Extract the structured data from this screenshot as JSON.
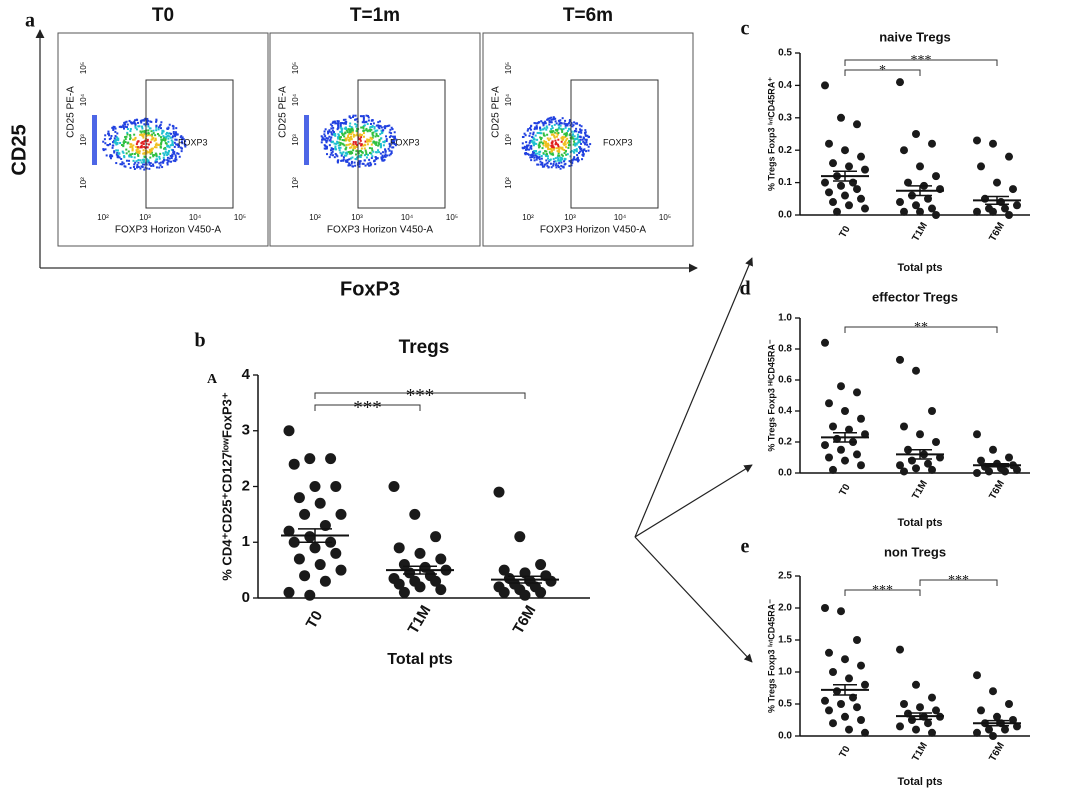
{
  "panel_labels": [
    "a",
    "b",
    "c",
    "d",
    "e"
  ],
  "panel_b_sublabel": "A",
  "flow_panels": {
    "titles": [
      "T0",
      "T=1m",
      "T=6m"
    ],
    "x_axis_label": "FOXP3 Horizon V450-A",
    "y_axis_label": "CD25 PE-A",
    "gate_label": "FOXP3",
    "ticks": [
      "10²",
      "10³",
      "10⁴",
      "10⁵"
    ],
    "big_y_label": "CD25",
    "big_x_label": "FoxP3"
  },
  "chart_data": [
    {
      "type": "dot",
      "title": "Tregs",
      "xlabel": "Total pts",
      "ylabel": "% CD4⁺CD25⁺CD127ˡᵒʷFoxP3⁺",
      "categories": [
        "T0",
        "T1M",
        "T6M"
      ],
      "points": [
        [
          3.0,
          2.5,
          2.5,
          2.4,
          2.0,
          2.0,
          1.8,
          1.7,
          1.5,
          1.5,
          1.3,
          1.2,
          1.1,
          1.0,
          1.0,
          0.9,
          0.8,
          0.7,
          0.6,
          0.5,
          0.4,
          0.3,
          0.1,
          0.05
        ],
        [
          2.0,
          1.5,
          1.1,
          0.9,
          0.8,
          0.7,
          0.6,
          0.55,
          0.5,
          0.45,
          0.4,
          0.35,
          0.3,
          0.3,
          0.25,
          0.2,
          0.15,
          0.1
        ],
        [
          1.9,
          1.1,
          0.6,
          0.5,
          0.45,
          0.4,
          0.35,
          0.3,
          0.3,
          0.25,
          0.2,
          0.2,
          0.15,
          0.1,
          0.1,
          0.05
        ]
      ],
      "means": [
        1.12,
        0.5,
        0.33
      ],
      "sem": [
        0.12,
        0.07,
        0.06
      ],
      "ylim": [
        0,
        4
      ],
      "yticks": [
        0,
        1,
        2,
        3,
        4
      ],
      "brackets": [
        {
          "groups": [
            "T0",
            "T1M"
          ],
          "label": "***"
        },
        {
          "groups": [
            "T0",
            "T6M"
          ],
          "label": "***"
        }
      ]
    },
    {
      "type": "dot",
      "title": "naive Tregs",
      "xlabel": "Total pts",
      "ylabel": "% Tregs Foxp3 ⁱⁿᵗCD45RA⁺",
      "categories": [
        "T0",
        "T1M",
        "T6M"
      ],
      "points": [
        [
          0.4,
          0.3,
          0.28,
          0.22,
          0.2,
          0.18,
          0.16,
          0.15,
          0.14,
          0.12,
          0.1,
          0.1,
          0.09,
          0.08,
          0.07,
          0.06,
          0.05,
          0.04,
          0.03,
          0.02,
          0.01
        ],
        [
          0.41,
          0.25,
          0.22,
          0.2,
          0.15,
          0.12,
          0.1,
          0.09,
          0.08,
          0.06,
          0.05,
          0.04,
          0.03,
          0.02,
          0.01,
          0.01,
          0
        ],
        [
          0.23,
          0.22,
          0.18,
          0.15,
          0.1,
          0.08,
          0.05,
          0.04,
          0.03,
          0.02,
          0.02,
          0.01,
          0.01,
          0
        ]
      ],
      "means": [
        0.12,
        0.075,
        0.045
      ],
      "sem": [
        0.015,
        0.015,
        0.012
      ],
      "ylim": [
        0,
        0.5
      ],
      "yticks": [
        {
          "value": 0,
          "label": "0.0"
        },
        0.1,
        0.2,
        0.3,
        0.4,
        0.5
      ],
      "brackets": [
        {
          "groups": [
            "T0",
            "T1M"
          ],
          "label": "*"
        },
        {
          "groups": [
            "T0",
            "T6M"
          ],
          "label": "***"
        }
      ]
    },
    {
      "type": "dot",
      "title": "effector Tregs",
      "xlabel": "Total pts",
      "ylabel": "% Tregs Foxp3 ᴴⁱCD45RA⁻",
      "categories": [
        "T0",
        "T1M",
        "T6M"
      ],
      "points": [
        [
          0.84,
          0.56,
          0.52,
          0.45,
          0.4,
          0.35,
          0.3,
          0.28,
          0.25,
          0.22,
          0.2,
          0.18,
          0.15,
          0.12,
          0.1,
          0.08,
          0.05,
          0.02
        ],
        [
          0.73,
          0.66,
          0.4,
          0.3,
          0.25,
          0.2,
          0.15,
          0.12,
          0.1,
          0.08,
          0.06,
          0.05,
          0.03,
          0.02,
          0.01
        ],
        [
          0.25,
          0.15,
          0.1,
          0.08,
          0.06,
          0.05,
          0.04,
          0.03,
          0.02,
          0.01,
          0.01,
          0
        ]
      ],
      "means": [
        0.23,
        0.12,
        0.05
      ],
      "sem": [
        0.03,
        0.03,
        0.01
      ],
      "ylim": [
        0,
        1
      ],
      "yticks": [
        {
          "value": 0,
          "label": "0.0"
        },
        0.2,
        0.4,
        0.6,
        0.8,
        {
          "value": 1,
          "label": "1.0"
        }
      ],
      "brackets": [
        {
          "groups": [
            "T0",
            "T6M"
          ],
          "label": "**"
        }
      ]
    },
    {
      "type": "dot",
      "title": "non Tregs",
      "xlabel": "Total pts",
      "ylabel": "% Tregs Foxp3 ⁱⁿᵗCD45RA⁻",
      "categories": [
        "T0",
        "T1M",
        "T6M"
      ],
      "points": [
        [
          2.0,
          1.95,
          1.5,
          1.3,
          1.2,
          1.1,
          1.0,
          0.9,
          0.8,
          0.7,
          0.6,
          0.55,
          0.5,
          0.45,
          0.4,
          0.3,
          0.25,
          0.2,
          0.1,
          0.05
        ],
        [
          1.35,
          0.8,
          0.6,
          0.5,
          0.45,
          0.4,
          0.35,
          0.3,
          0.3,
          0.25,
          0.2,
          0.15,
          0.1,
          0.05
        ],
        [
          0.95,
          0.7,
          0.5,
          0.4,
          0.3,
          0.25,
          0.2,
          0.2,
          0.15,
          0.1,
          0.1,
          0.05,
          0
        ]
      ],
      "means": [
        0.72,
        0.31,
        0.2
      ],
      "sem": [
        0.08,
        0.05,
        0.04
      ],
      "ylim": [
        0,
        2.5
      ],
      "yticks": [
        {
          "value": 0,
          "label": "0.0"
        },
        0.5,
        {
          "value": 1,
          "label": "1.0"
        },
        1.5,
        {
          "value": 2,
          "label": "2.0"
        },
        2.5
      ],
      "brackets": [
        {
          "groups": [
            "T0",
            "T1M"
          ],
          "label": "***"
        },
        {
          "groups": [
            "T1M",
            "T6M"
          ],
          "label": "***"
        }
      ]
    }
  ]
}
